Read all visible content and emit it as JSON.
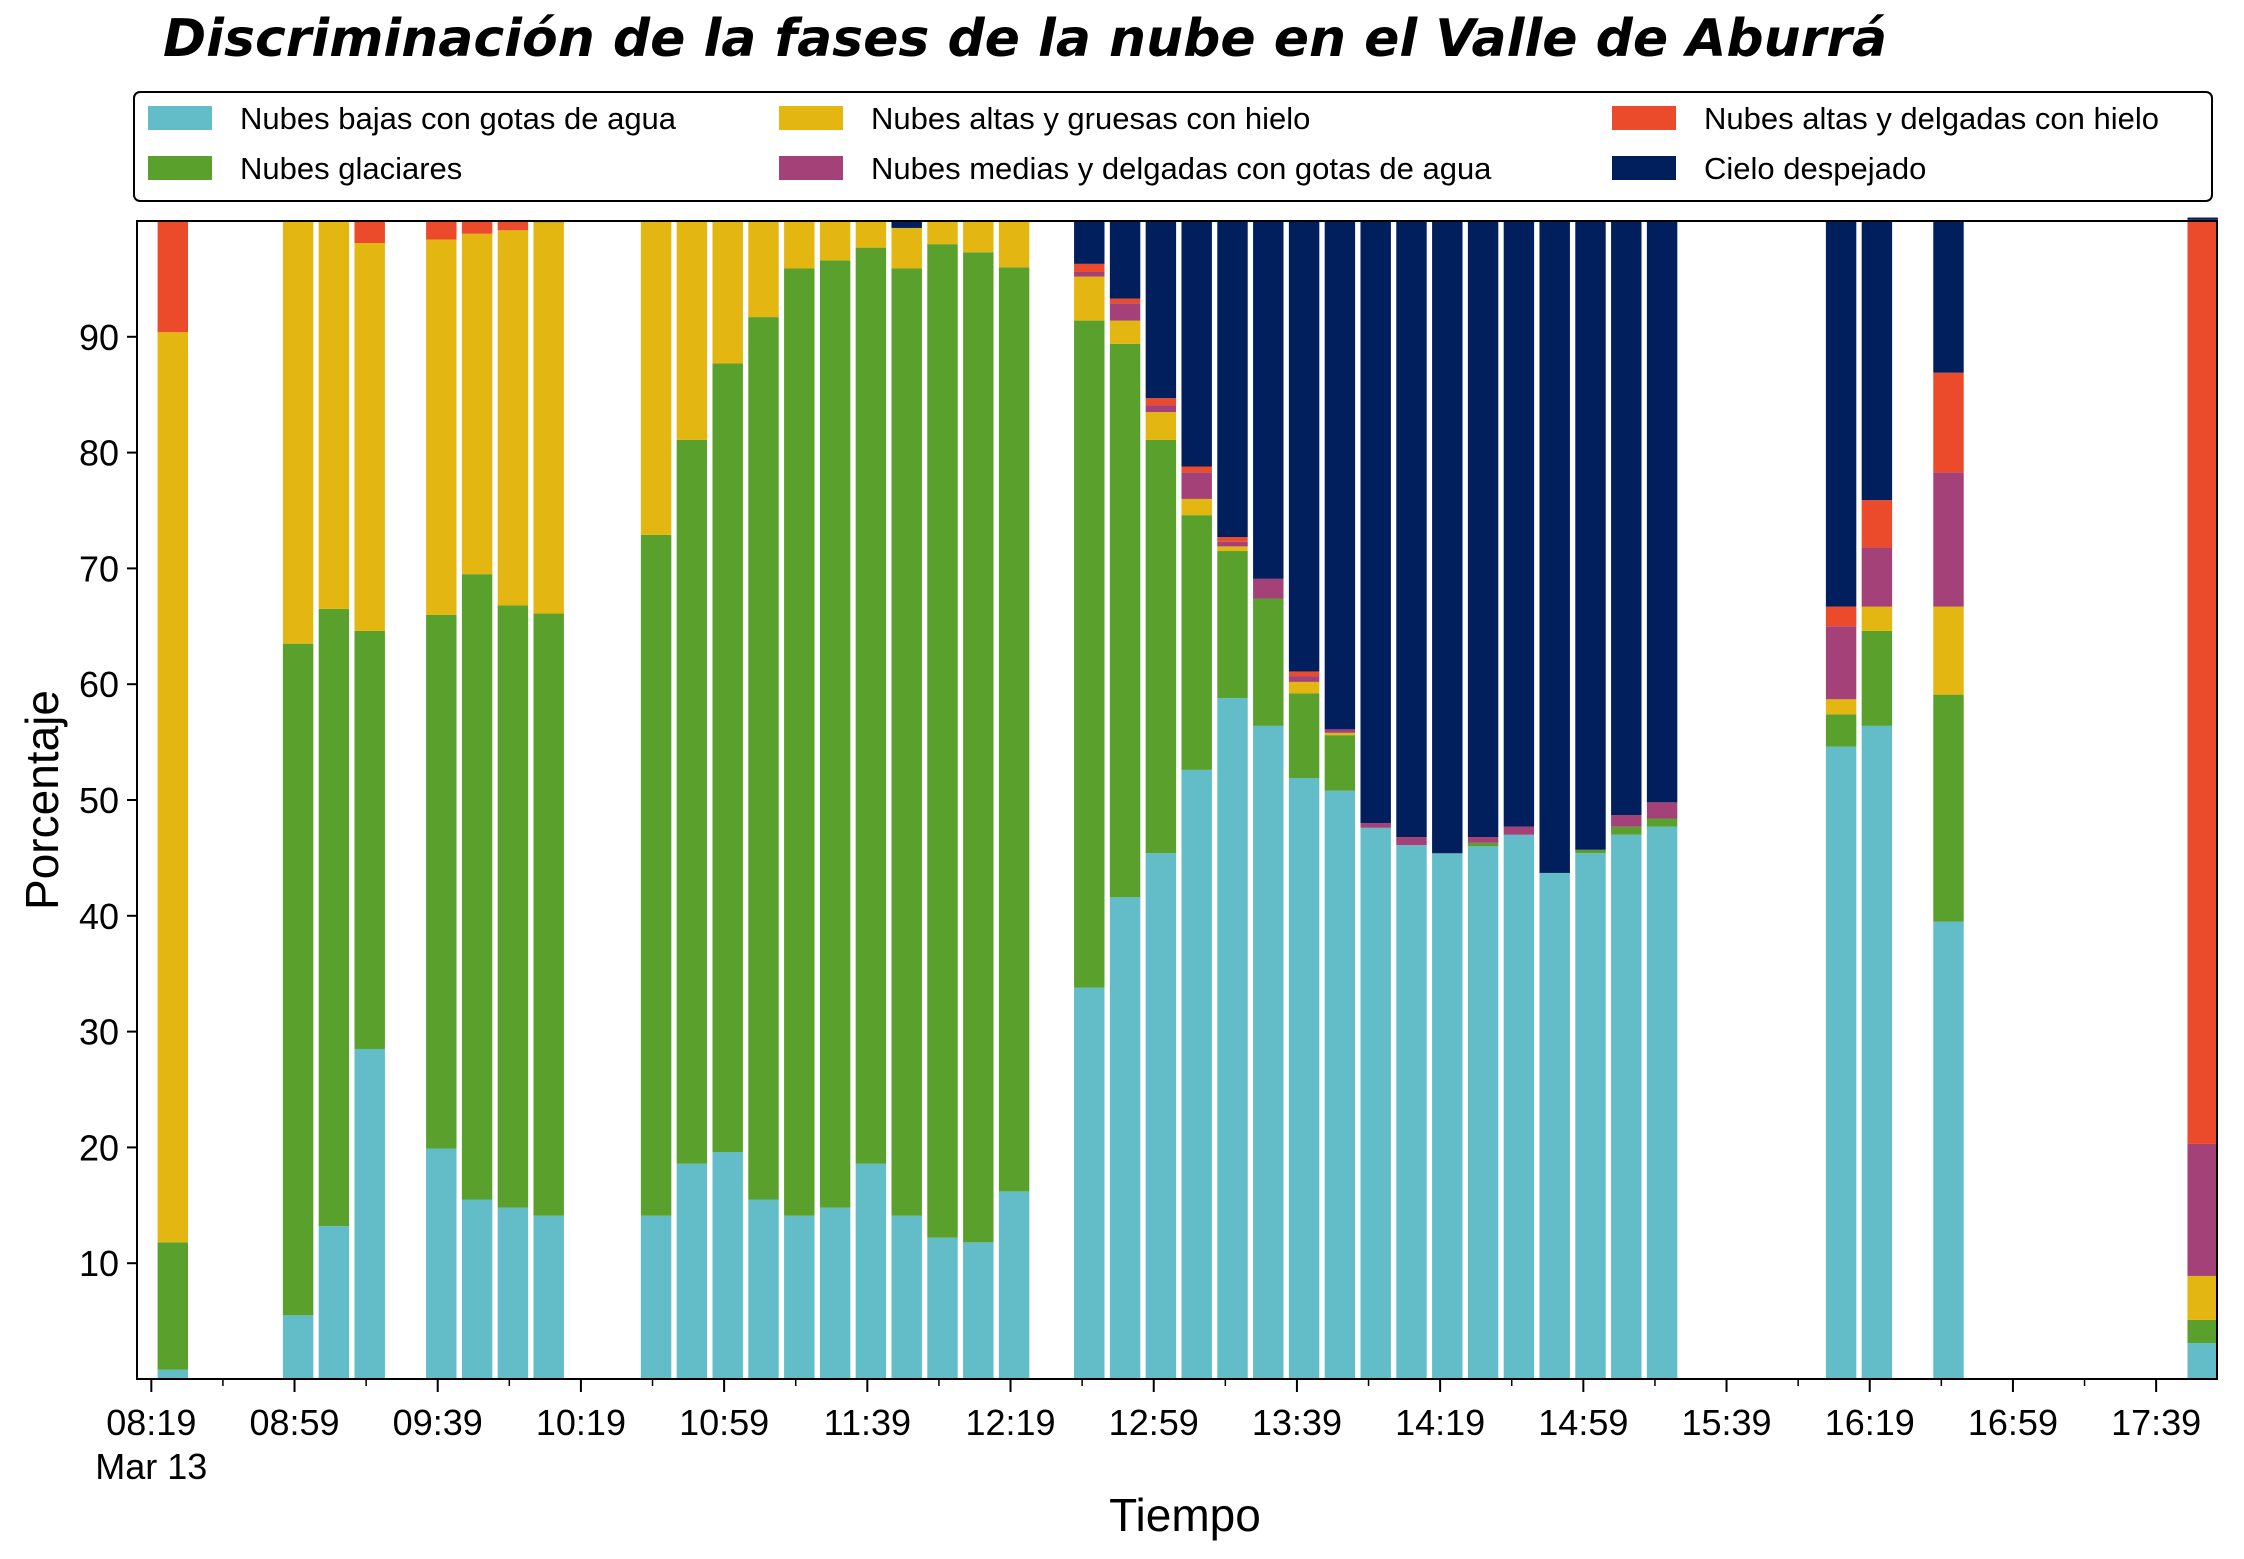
{
  "chart_data": {
    "type": "bar",
    "stacked": true,
    "title": "Discriminación de la fases de la nube en el Valle de Aburrá",
    "xlabel": "Tiempo",
    "ylabel": "Porcentaje",
    "ylim": [
      0,
      100
    ],
    "yticks": [
      10,
      20,
      30,
      40,
      50,
      60,
      70,
      80,
      90
    ],
    "x_range_minutes": [
      495,
      1076
    ],
    "bar_width_minutes": 8.5,
    "xticks": [
      {
        "t": 499,
        "label": "08:19",
        "sublabel": "Mar 13"
      },
      {
        "t": 539,
        "label": "08:59"
      },
      {
        "t": 579,
        "label": "09:39"
      },
      {
        "t": 619,
        "label": "10:19"
      },
      {
        "t": 659,
        "label": "10:59"
      },
      {
        "t": 699,
        "label": "11:39"
      },
      {
        "t": 739,
        "label": "12:19"
      },
      {
        "t": 779,
        "label": "12:59"
      },
      {
        "t": 819,
        "label": "13:39"
      },
      {
        "t": 859,
        "label": "14:19"
      },
      {
        "t": 899,
        "label": "14:59"
      },
      {
        "t": 939,
        "label": "15:39"
      },
      {
        "t": 979,
        "label": "16:19"
      },
      {
        "t": 1019,
        "label": "16:59"
      },
      {
        "t": 1059,
        "label": "17:39"
      }
    ],
    "minor_ticks": [
      519,
      559,
      599,
      639,
      679,
      719,
      759,
      799,
      839,
      879,
      919,
      959,
      999,
      1039
    ],
    "legend": {
      "position": "top",
      "columns": 3
    },
    "series": [
      {
        "name": "Nubes bajas con gotas de agua",
        "color": "#62bdc9"
      },
      {
        "name": "Nubes glaciares",
        "color": "#5aa02c"
      },
      {
        "name": "Nubes altas y gruesas con hielo",
        "color": "#e3b612"
      },
      {
        "name": "Nubes medias y delgadas con gotas de agua",
        "color": "#a34178"
      },
      {
        "name": "Nubes altas y delgadas con hielo",
        "color": "#eb4a2b"
      },
      {
        "name": "Cielo despejado",
        "color": "#011f5c"
      }
    ],
    "legend_order": [
      0,
      2,
      4,
      1,
      3,
      5
    ],
    "bars": [
      {
        "t": 505,
        "values": [
          0.8,
          11.0,
          78.6,
          0,
          9.6,
          0
        ]
      },
      {
        "t": 540,
        "values": [
          5.5,
          58.0,
          36.5,
          0,
          0,
          0
        ]
      },
      {
        "t": 550,
        "values": [
          13.2,
          53.3,
          33.5,
          0,
          0,
          0
        ]
      },
      {
        "t": 560,
        "values": [
          28.5,
          36.1,
          33.5,
          0,
          1.9,
          0
        ]
      },
      {
        "t": 580,
        "values": [
          19.9,
          46.1,
          32.4,
          0,
          1.6,
          0
        ]
      },
      {
        "t": 590,
        "values": [
          15.5,
          54.0,
          29.4,
          0,
          1.1,
          0
        ]
      },
      {
        "t": 600,
        "values": [
          14.8,
          52.0,
          32.4,
          0,
          0.8,
          0
        ]
      },
      {
        "t": 610,
        "values": [
          14.1,
          52.0,
          33.8,
          0,
          0,
          0.1
        ]
      },
      {
        "t": 640,
        "values": [
          14.1,
          58.8,
          27.1,
          0,
          0,
          0
        ]
      },
      {
        "t": 650,
        "values": [
          18.6,
          62.5,
          18.9,
          0,
          0,
          0
        ]
      },
      {
        "t": 660,
        "values": [
          19.6,
          68.1,
          12.3,
          0,
          0,
          0
        ]
      },
      {
        "t": 670,
        "values": [
          15.5,
          76.2,
          8.3,
          0,
          0,
          0
        ]
      },
      {
        "t": 680,
        "values": [
          14.1,
          81.8,
          4.1,
          0,
          0,
          0
        ]
      },
      {
        "t": 690,
        "values": [
          14.8,
          81.8,
          3.4,
          0,
          0,
          0
        ]
      },
      {
        "t": 700,
        "values": [
          18.6,
          79.1,
          2.3,
          0,
          0,
          0
        ]
      },
      {
        "t": 710,
        "values": [
          14.1,
          81.8,
          3.5,
          0,
          0,
          0.6
        ]
      },
      {
        "t": 720,
        "values": [
          12.2,
          85.8,
          2.0,
          0,
          0,
          0
        ]
      },
      {
        "t": 730,
        "values": [
          11.8,
          85.5,
          2.7,
          0,
          0,
          0
        ]
      },
      {
        "t": 740,
        "values": [
          16.2,
          79.8,
          4.0,
          0,
          0,
          0
        ]
      },
      {
        "t": 761,
        "values": [
          33.8,
          57.6,
          3.8,
          0.4,
          0.7,
          3.7
        ]
      },
      {
        "t": 771,
        "values": [
          41.6,
          47.8,
          2.0,
          1.5,
          0.4,
          6.7
        ]
      },
      {
        "t": 781,
        "values": [
          45.4,
          35.7,
          2.4,
          0.6,
          0.6,
          15.3
        ]
      },
      {
        "t": 791,
        "values": [
          52.6,
          22.0,
          1.4,
          2.3,
          0.5,
          21.2
        ]
      },
      {
        "t": 801,
        "values": [
          58.8,
          12.7,
          0.4,
          0.4,
          0.4,
          27.3
        ]
      },
      {
        "t": 811,
        "values": [
          56.4,
          11.0,
          0,
          1.7,
          0,
          30.9
        ]
      },
      {
        "t": 821,
        "values": [
          51.9,
          7.3,
          1.0,
          0.5,
          0.4,
          38.9
        ]
      },
      {
        "t": 831,
        "values": [
          50.8,
          4.8,
          0.2,
          0.3,
          0,
          43.9
        ]
      },
      {
        "t": 841,
        "values": [
          47.6,
          0,
          0,
          0.4,
          0,
          52.0
        ]
      },
      {
        "t": 851,
        "values": [
          46.1,
          0,
          0,
          0.7,
          0,
          53.2
        ]
      },
      {
        "t": 861,
        "values": [
          45.4,
          0,
          0,
          0,
          0,
          54.6
        ]
      },
      {
        "t": 871,
        "values": [
          46.0,
          0.3,
          0,
          0.5,
          0,
          53.2
        ]
      },
      {
        "t": 881,
        "values": [
          47.0,
          0,
          0,
          0.7,
          0,
          52.3
        ]
      },
      {
        "t": 891,
        "values": [
          43.7,
          0,
          0,
          0,
          0,
          56.3
        ]
      },
      {
        "t": 901,
        "values": [
          45.4,
          0.3,
          0,
          0,
          0,
          54.3
        ]
      },
      {
        "t": 911,
        "values": [
          47.0,
          0.7,
          0,
          1.0,
          0,
          51.3
        ]
      },
      {
        "t": 921,
        "values": [
          47.7,
          0.7,
          0,
          1.4,
          0,
          50.2
        ]
      },
      {
        "t": 971,
        "values": [
          54.6,
          2.8,
          1.3,
          6.3,
          1.7,
          33.3
        ]
      },
      {
        "t": 981,
        "values": [
          56.4,
          8.2,
          2.1,
          5.1,
          4.1,
          24.1
        ]
      },
      {
        "t": 1001,
        "values": [
          39.5,
          19.6,
          7.6,
          11.6,
          8.6,
          13.1
        ]
      },
      {
        "t": 1072,
        "values": [
          3.1,
          2.0,
          3.8,
          11.4,
          79.8,
          0.2
        ]
      }
    ]
  }
}
